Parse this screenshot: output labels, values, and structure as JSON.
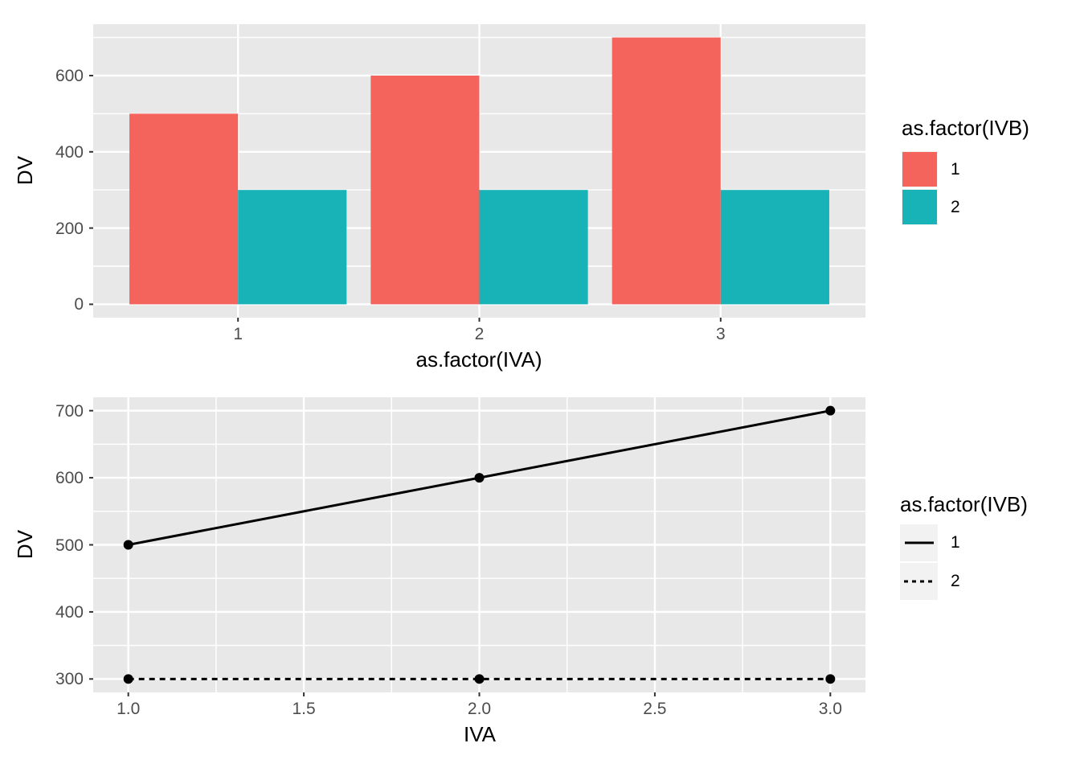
{
  "colors": {
    "panel_bg": "#e8e8e8",
    "grid": "#ffffff",
    "tick_mark": "#333333",
    "tick_text": "#4d4d4d",
    "series1_fill": "#f5635d",
    "series2_fill": "#18b3b7",
    "line_black": "#000000",
    "legend_key_bg": "#f2f2f2"
  },
  "chart_data": [
    {
      "type": "bar",
      "title": "",
      "xlabel": "as.factor(IVA)",
      "ylabel": "DV",
      "legend_title": "as.factor(IVB)",
      "legend_position": "right",
      "categories": [
        "1",
        "2",
        "3"
      ],
      "series": [
        {
          "name": "1",
          "values": [
            500,
            600,
            700
          ],
          "color": "#f5635d"
        },
        {
          "name": "2",
          "values": [
            300,
            300,
            300
          ],
          "color": "#18b3b7"
        }
      ],
      "y_ticks": [
        0,
        200,
        400,
        600
      ],
      "y_minor": [
        100,
        300,
        500,
        700
      ],
      "ylim": [
        0,
        700
      ],
      "grid": "on",
      "bar_mode": "dodge"
    },
    {
      "type": "line",
      "title": "",
      "xlabel": "IVA",
      "ylabel": "DV",
      "legend_title": "as.factor(IVB)",
      "legend_position": "right",
      "x": [
        1,
        2,
        3
      ],
      "series": [
        {
          "name": "1",
          "values": [
            500,
            600,
            700
          ],
          "linetype": "solid",
          "color": "#000000"
        },
        {
          "name": "2",
          "values": [
            300,
            300,
            300
          ],
          "linetype": "dashed",
          "color": "#000000"
        }
      ],
      "x_ticks": [
        1.0,
        1.5,
        2.0,
        2.5,
        3.0
      ],
      "x_tick_labels": [
        "1.0",
        "1.5",
        "2.0",
        "2.5",
        "3.0"
      ],
      "x_minor": [
        1.25,
        1.75,
        2.25,
        2.75
      ],
      "y_ticks": [
        300,
        400,
        500,
        600,
        700
      ],
      "y_minor": [
        350,
        450,
        550,
        650
      ],
      "xlim": [
        1,
        3
      ],
      "ylim": [
        300,
        700
      ],
      "grid": "on",
      "markers": "points"
    }
  ]
}
